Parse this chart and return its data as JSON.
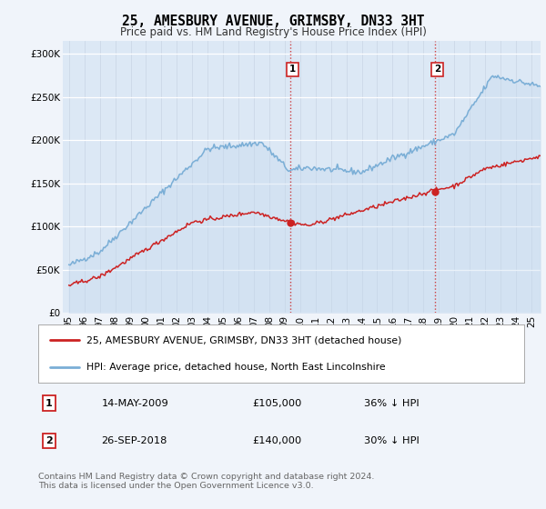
{
  "title1": "25, AMESBURY AVENUE, GRIMSBY, DN33 3HT",
  "title2": "Price paid vs. HM Land Registry's House Price Index (HPI)",
  "ylabel_ticks": [
    "£0",
    "£50K",
    "£100K",
    "£150K",
    "£200K",
    "£250K",
    "£300K"
  ],
  "ytick_vals": [
    0,
    50000,
    100000,
    150000,
    200000,
    250000,
    300000
  ],
  "ylim": [
    0,
    315000
  ],
  "xlim_start": 1994.6,
  "xlim_end": 2025.6,
  "hpi_color": "#7aaed6",
  "hpi_fill_color": "#c5d9ee",
  "price_color": "#cc2222",
  "marker1_x": 2009.37,
  "marker2_x": 2018.74,
  "vline1_x": 2009.37,
  "vline2_x": 2018.74,
  "legend_label1": "25, AMESBURY AVENUE, GRIMSBY, DN33 3HT (detached house)",
  "legend_label2": "HPI: Average price, detached house, North East Lincolnshire",
  "footer": "Contains HM Land Registry data © Crown copyright and database right 2024.\nThis data is licensed under the Open Government Licence v3.0.",
  "bg_color": "#f0f4fa",
  "plot_bg": "#dce8f5"
}
